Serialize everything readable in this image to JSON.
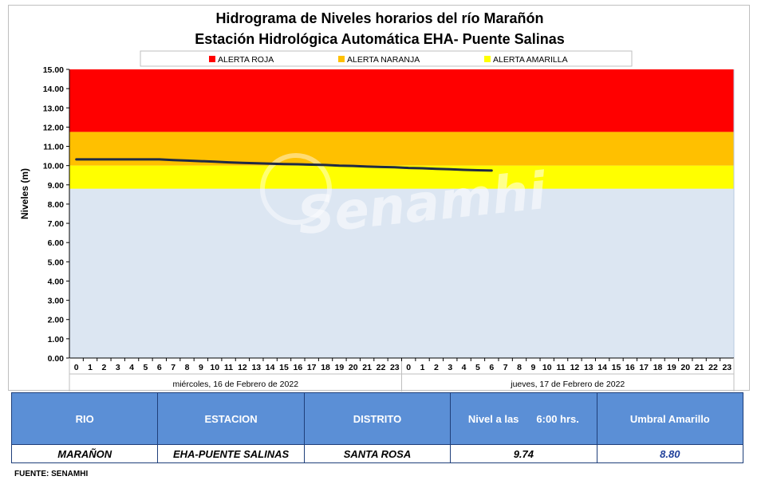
{
  "chart_data": {
    "type": "line",
    "title": "Hidrograma de Niveles horarios del río Marañón",
    "subtitle": "Estación Hidrológica Automática EHA- Puente Salinas",
    "ylabel": "Niveles (m)",
    "ylim": [
      0,
      15
    ],
    "yticks": [
      "0.00",
      "1.00",
      "2.00",
      "3.00",
      "4.00",
      "5.00",
      "6.00",
      "7.00",
      "8.00",
      "9.00",
      "10.00",
      "11.00",
      "12.00",
      "13.00",
      "14.00",
      "15.00"
    ],
    "x_ticks": [
      "0",
      "1",
      "2",
      "3",
      "4",
      "5",
      "6",
      "7",
      "8",
      "9",
      "10",
      "11",
      "12",
      "13",
      "14",
      "15",
      "16",
      "17",
      "18",
      "19",
      "20",
      "21",
      "22",
      "23",
      "0",
      "1",
      "2",
      "3",
      "4",
      "5",
      "6",
      "7",
      "8",
      "9",
      "10",
      "11",
      "12",
      "13",
      "14",
      "15",
      "16",
      "17",
      "18",
      "19",
      "20",
      "21",
      "22",
      "23"
    ],
    "day_labels": [
      "miércoles, 16 de Febrero de 2022",
      "jueves, 17 de Febrero de 2022"
    ],
    "legend": [
      "ALERTA ROJA",
      "ALERTA NARANJA",
      "ALERTA AMARILLA"
    ],
    "alert_bands": [
      {
        "name": "ALERTA ROJA",
        "from": 11.75,
        "to": 15.0,
        "color": "#ff0000"
      },
      {
        "name": "ALERTA NARANJA",
        "from": 10.0,
        "to": 11.75,
        "color": "#ffc000"
      },
      {
        "name": "ALERTA AMARILLA",
        "from": 8.8,
        "to": 10.0,
        "color": "#ffff00"
      }
    ],
    "background_color": "#dce6f2",
    "series": [
      {
        "line_color": "#1f2a44",
        "x": [
          0,
          1,
          2,
          3,
          4,
          5,
          6,
          7,
          8,
          9,
          10,
          11,
          12,
          13,
          14,
          15,
          16,
          17,
          18,
          19,
          20,
          21,
          22,
          23,
          24,
          25,
          26,
          27,
          28,
          29,
          30
        ],
        "values": [
          10.32,
          10.32,
          10.32,
          10.32,
          10.32,
          10.32,
          10.32,
          10.29,
          10.26,
          10.23,
          10.2,
          10.17,
          10.14,
          10.12,
          10.1,
          10.08,
          10.07,
          10.05,
          10.03,
          10.0,
          9.98,
          9.95,
          9.93,
          9.91,
          9.88,
          9.86,
          9.83,
          9.81,
          9.78,
          9.76,
          9.74
        ]
      }
    ],
    "watermark": "Senamhi"
  },
  "table": {
    "headers": [
      "RIO",
      "ESTACION",
      "DISTRITO",
      "Nivel a las",
      "6:00  hrs.",
      "Umbral Amarillo"
    ],
    "row": [
      "MARAÑON",
      "EHA-PUENTE SALINAS",
      "SANTA ROSA",
      "9.74",
      "8.80"
    ]
  },
  "source": "FUENTE: SENAMHI"
}
